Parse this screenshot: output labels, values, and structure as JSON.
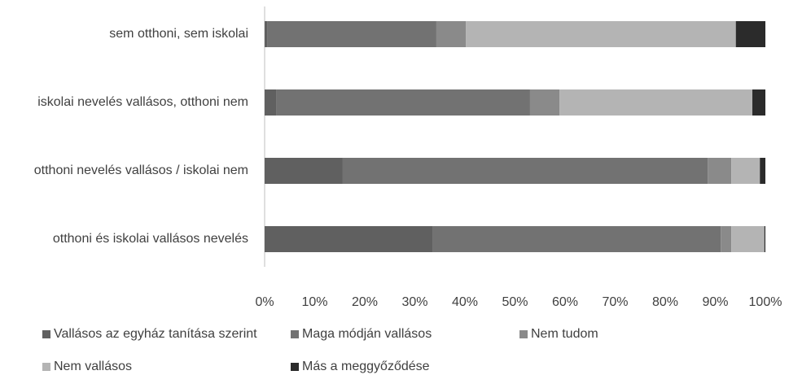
{
  "chart_data": {
    "type": "stacked-bar-horizontal",
    "categories": [
      "sem otthoni, sem iskolai",
      "iskolai nevelés vallásos, otthoni nem",
      "otthoni nevelés vallásos / iskolai nem",
      "otthoni és iskolai vallásos nevelés"
    ],
    "series": [
      {
        "name": "Vallásos az egyház tanítása szerint",
        "color": "#606060",
        "values": [
          0.5,
          2.4,
          15.6,
          33.5
        ]
      },
      {
        "name": "Maga módján vallásos",
        "color": "#727272",
        "values": [
          33.8,
          50.6,
          72.9,
          57.6
        ]
      },
      {
        "name": "Nem tudom",
        "color": "#8a8a8a",
        "values": [
          5.9,
          5.9,
          4.7,
          2.1
        ]
      },
      {
        "name": "Nem vallásos",
        "color": "#b4b4b4",
        "values": [
          53.9,
          38.5,
          5.7,
          6.6
        ]
      },
      {
        "name": "Más a meggyőződése",
        "color": "#2b2b2b",
        "values": [
          5.9,
          2.6,
          1.1,
          0.2
        ]
      }
    ],
    "xlim": [
      0,
      100
    ],
    "xticks": [
      {
        "value": 0,
        "label": "0%"
      },
      {
        "value": 10,
        "label": "10%"
      },
      {
        "value": 20,
        "label": "20%"
      },
      {
        "value": 30,
        "label": "30%"
      },
      {
        "value": 40,
        "label": "40%"
      },
      {
        "value": 50,
        "label": "50%"
      },
      {
        "value": 60,
        "label": "60%"
      },
      {
        "value": 70,
        "label": "70%"
      },
      {
        "value": 80,
        "label": "80%"
      },
      {
        "value": 90,
        "label": "90%"
      },
      {
        "value": 100,
        "label": "100%"
      }
    ],
    "legend": "bottom"
  }
}
